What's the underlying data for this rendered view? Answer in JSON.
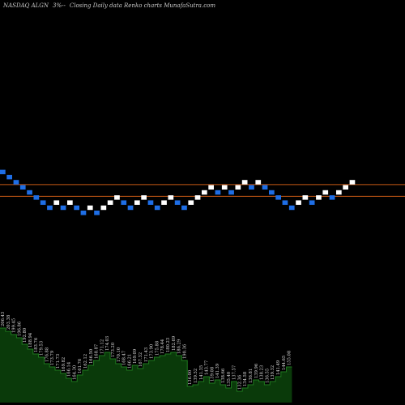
{
  "header": {
    "symbol": "NASDAQ ALGN",
    "box_pct": "3%",
    "title": "Closing Daily data Renko charts MunafaSutra.com"
  },
  "colors": {
    "background": "#000000",
    "up_brick": "#ffffff",
    "down_brick": "#1e6ee6",
    "ref_line": "#c85a14",
    "volume_fill": "#0a3a0a",
    "volume_line": "#1f7a1f",
    "label_text": "#d8d8d8"
  },
  "chart_data": {
    "type": "renko",
    "title": "NASDAQ ALGN 3%-- Closing Daily data Renko charts MunafaSutra.com",
    "reference_lines": [
      {
        "price_level": 20.1,
        "label": ""
      },
      {
        "price_level": 17.8,
        "label": ""
      }
    ],
    "bricks": [
      {
        "dir": "down",
        "level": 22
      },
      {
        "dir": "down",
        "level": 21
      },
      {
        "dir": "down",
        "level": 20
      },
      {
        "dir": "down",
        "level": 19
      },
      {
        "dir": "down",
        "level": 18
      },
      {
        "dir": "down",
        "level": 17
      },
      {
        "dir": "down",
        "level": 16
      },
      {
        "dir": "down",
        "level": 15
      },
      {
        "dir": "up",
        "level": 16
      },
      {
        "dir": "down",
        "level": 15
      },
      {
        "dir": "up",
        "level": 16
      },
      {
        "dir": "down",
        "level": 15
      },
      {
        "dir": "down",
        "level": 14
      },
      {
        "dir": "up",
        "level": 15
      },
      {
        "dir": "down",
        "level": 14
      },
      {
        "dir": "up",
        "level": 15
      },
      {
        "dir": "up",
        "level": 16
      },
      {
        "dir": "up",
        "level": 17
      },
      {
        "dir": "down",
        "level": 16
      },
      {
        "dir": "down",
        "level": 15
      },
      {
        "dir": "up",
        "level": 16
      },
      {
        "dir": "up",
        "level": 17
      },
      {
        "dir": "down",
        "level": 16
      },
      {
        "dir": "down",
        "level": 15
      },
      {
        "dir": "up",
        "level": 16
      },
      {
        "dir": "up",
        "level": 17
      },
      {
        "dir": "down",
        "level": 16
      },
      {
        "dir": "down",
        "level": 15
      },
      {
        "dir": "up",
        "level": 16
      },
      {
        "dir": "up",
        "level": 17
      },
      {
        "dir": "up",
        "level": 18
      },
      {
        "dir": "up",
        "level": 19
      },
      {
        "dir": "down",
        "level": 18
      },
      {
        "dir": "up",
        "level": 19
      },
      {
        "dir": "down",
        "level": 18
      },
      {
        "dir": "up",
        "level": 19
      },
      {
        "dir": "up",
        "level": 20
      },
      {
        "dir": "down",
        "level": 19
      },
      {
        "dir": "up",
        "level": 20
      },
      {
        "dir": "down",
        "level": 19
      },
      {
        "dir": "down",
        "level": 18
      },
      {
        "dir": "down",
        "level": 17
      },
      {
        "dir": "down",
        "level": 16
      },
      {
        "dir": "down",
        "level": 15
      },
      {
        "dir": "up",
        "level": 16
      },
      {
        "dir": "up",
        "level": 17
      },
      {
        "dir": "down",
        "level": 16
      },
      {
        "dir": "up",
        "level": 17
      },
      {
        "dir": "up",
        "level": 18
      },
      {
        "dir": "down",
        "level": 17
      },
      {
        "dir": "up",
        "level": 18
      },
      {
        "dir": "up",
        "level": 19
      },
      {
        "dir": "up",
        "level": 20
      }
    ],
    "volume_profile": [
      92,
      88,
      84,
      80,
      72,
      66,
      60,
      56,
      48,
      44,
      40,
      36,
      30,
      26,
      34,
      40,
      46,
      52,
      58,
      62,
      54,
      48,
      44,
      40,
      46,
      42,
      48,
      52,
      56,
      58,
      60,
      62,
      58,
      52,
      20,
      22,
      26,
      32,
      24,
      28,
      22,
      18,
      26,
      14,
      18,
      22,
      28,
      26,
      22,
      26,
      32,
      38,
      44
    ],
    "price_labels": [
      "206.43",
      "203.38",
      "199.45",
      "196.86",
      "192.80",
      "188.94",
      "183.76",
      "179.53",
      "176.88",
      "173.79",
      "171.73",
      "169.82",
      "166.14",
      "164.30",
      "161.76",
      "162.12",
      "166.50",
      "168.87",
      "171.12",
      "174.03",
      "173.20",
      "170.10",
      "168.47",
      "166.21",
      "169.09",
      "167.32",
      "171.43",
      "173.90",
      "175.88",
      "178.44",
      "180.23",
      "182.69",
      "186.29",
      "190.36",
      "136.00",
      "139.52",
      "141.35",
      "143.77",
      "139.08",
      "141.39",
      "138.66",
      "135.40",
      "137.57",
      "132.36",
      "134.58",
      "136.81",
      "139.96",
      "138.23",
      "136.55",
      "139.32",
      "141.49",
      "144.65",
      "155.08"
    ]
  }
}
